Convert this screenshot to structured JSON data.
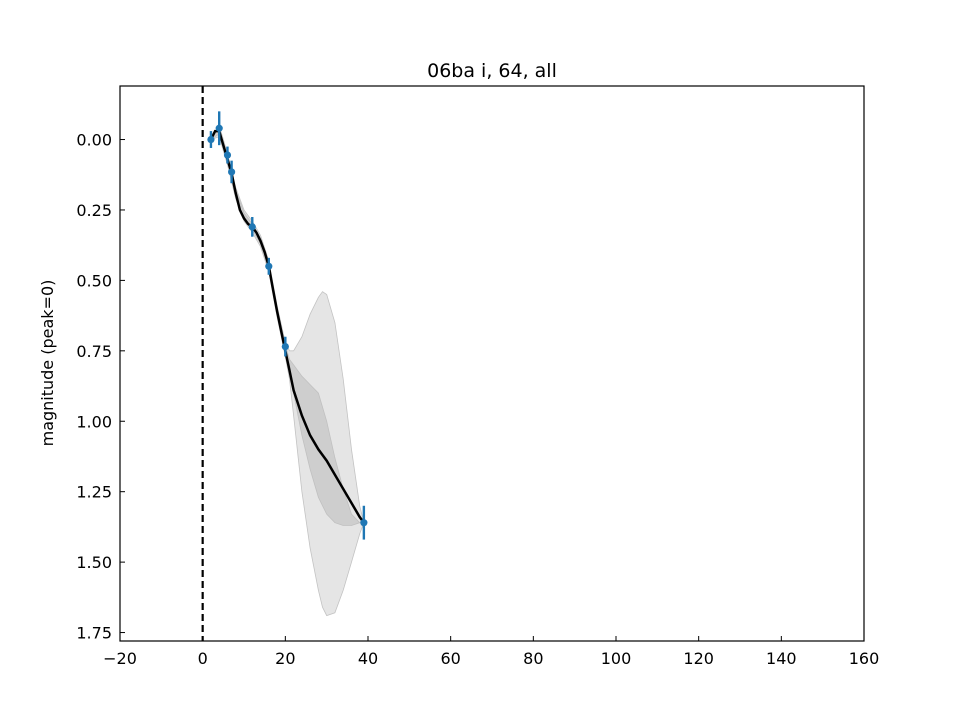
{
  "chart_data": {
    "type": "line",
    "title": "06ba i, 64, all",
    "xlabel": "",
    "ylabel": "magnitude (peak=0)",
    "xlim": [
      -20,
      160
    ],
    "ylim": [
      1.78,
      -0.19
    ],
    "y_inverted": true,
    "x_ticks": [
      -20,
      0,
      20,
      40,
      60,
      80,
      100,
      120,
      140,
      160
    ],
    "x_tick_labels": [
      "−20",
      "0",
      "20",
      "40",
      "60",
      "80",
      "100",
      "120",
      "140",
      "160"
    ],
    "y_ticks": [
      0.0,
      0.25,
      0.5,
      0.75,
      1.0,
      1.25,
      1.5,
      1.75
    ],
    "y_tick_labels": [
      "0.00",
      "0.25",
      "0.50",
      "0.75",
      "1.00",
      "1.25",
      "1.50",
      "1.75"
    ],
    "peak_line_x": 0,
    "grid": false,
    "series": [
      {
        "kind": "points",
        "color": "#1f77b4",
        "points": [
          {
            "x": 2.0,
            "y": 0.0,
            "err": 0.03
          },
          {
            "x": 4.0,
            "y": -0.04,
            "err": 0.06
          },
          {
            "x": 6.0,
            "y": 0.055,
            "err": 0.03
          },
          {
            "x": 7.0,
            "y": 0.115,
            "err": 0.04
          },
          {
            "x": 12.0,
            "y": 0.31,
            "err": 0.035
          },
          {
            "x": 16.0,
            "y": 0.45,
            "err": 0.03
          },
          {
            "x": 20.0,
            "y": 0.735,
            "err": 0.035
          },
          {
            "x": 39.0,
            "y": 1.36,
            "err": 0.06
          }
        ]
      },
      {
        "kind": "fit",
        "color": "#000000",
        "x": [
          2,
          3,
          4,
          5,
          6,
          7,
          8,
          9,
          10,
          11,
          12,
          13,
          14,
          15,
          16,
          17,
          18,
          19,
          20,
          21,
          22,
          24,
          26,
          28,
          30,
          32,
          34,
          36,
          38,
          39
        ],
        "y": [
          0.0,
          -0.03,
          -0.03,
          0.02,
          0.07,
          0.12,
          0.19,
          0.25,
          0.28,
          0.3,
          0.31,
          0.33,
          0.36,
          0.4,
          0.45,
          0.53,
          0.61,
          0.68,
          0.75,
          0.82,
          0.89,
          0.98,
          1.05,
          1.1,
          1.14,
          1.19,
          1.24,
          1.29,
          1.34,
          1.36
        ]
      },
      {
        "kind": "band",
        "color": "#cccccc",
        "x": [
          2,
          4,
          6,
          8,
          10,
          12,
          14,
          16,
          18,
          20,
          21,
          22,
          24,
          26,
          28,
          30,
          32,
          34,
          36,
          38,
          39
        ],
        "lower": [
          0.0,
          -0.04,
          0.06,
          0.18,
          0.26,
          0.3,
          0.35,
          0.44,
          0.6,
          0.73,
          0.78,
          0.8,
          0.84,
          0.87,
          0.9,
          1.0,
          1.13,
          1.24,
          1.33,
          1.36,
          1.36
        ],
        "upper": [
          0.0,
          -0.02,
          0.08,
          0.2,
          0.28,
          0.32,
          0.37,
          0.46,
          0.62,
          0.76,
          0.8,
          0.9,
          1.05,
          1.17,
          1.27,
          1.33,
          1.36,
          1.37,
          1.37,
          1.36,
          1.36
        ]
      },
      {
        "kind": "band",
        "color": "#e3e3e3",
        "x": [
          2,
          4,
          6,
          8,
          10,
          12,
          14,
          16,
          18,
          20,
          21,
          22,
          24,
          26,
          28,
          29,
          30,
          32,
          34,
          36,
          38,
          39
        ],
        "lower": [
          0.0,
          -0.05,
          0.05,
          0.17,
          0.25,
          0.29,
          0.34,
          0.43,
          0.59,
          0.72,
          0.75,
          0.75,
          0.7,
          0.62,
          0.56,
          0.54,
          0.55,
          0.65,
          0.85,
          1.1,
          1.3,
          1.36
        ],
        "upper": [
          0.0,
          -0.01,
          0.09,
          0.21,
          0.29,
          0.33,
          0.38,
          0.47,
          0.63,
          0.77,
          0.85,
          0.98,
          1.25,
          1.45,
          1.6,
          1.66,
          1.69,
          1.68,
          1.6,
          1.5,
          1.4,
          1.36
        ]
      }
    ]
  }
}
